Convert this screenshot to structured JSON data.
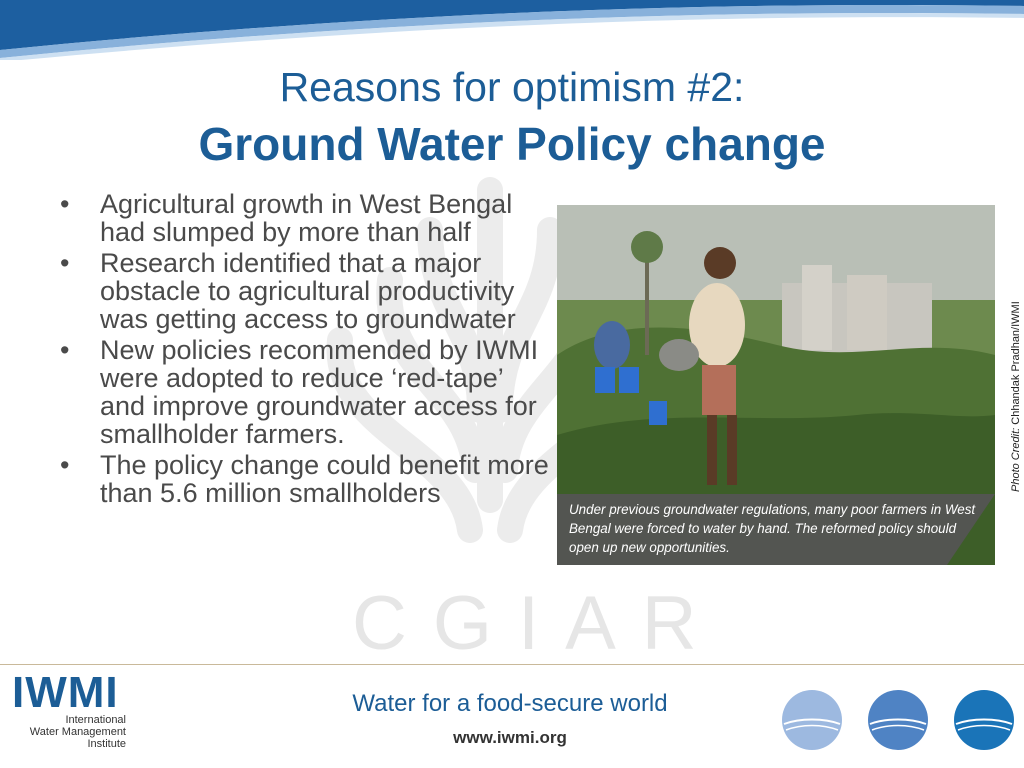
{
  "title": {
    "line1": "Reasons for optimism #2:",
    "line2": "Ground Water Policy change"
  },
  "bullets": [
    "Agricultural growth in West Bengal had slumped by more than half",
    "Research identified that a major obstacle to agricultural productivity was getting access to groundwater",
    "New policies recommended by IWMI were adopted to reduce ‘red-tape’ and improve groundwater access for smallholder farmers.",
    "The policy change could benefit more than 5.6 million smallholders"
  ],
  "photo": {
    "caption": "Under previous groundwater regulations, many poor farmers in West Bengal were forced to water by hand. The reformed policy should open up new opportunities.",
    "credit_label": "Photo Credit:",
    "credit_name": " Chhandak Pradhan/IWMI"
  },
  "watermark": {
    "text": "CGIAR"
  },
  "footer": {
    "logo_word": "IWMI",
    "logo_line1": "International",
    "logo_line2": "Water Management",
    "logo_line3": "Institute",
    "slogan": "Water for a food-secure world",
    "url": "www.iwmi.org"
  },
  "colors": {
    "brand_blue": "#1c5d96",
    "text_gray": "#4a4a4a",
    "caption_bg": "#555555"
  },
  "icons": [
    "bullet-dot",
    "water-orb-icon",
    "cgiar-watermark",
    "iwmi-logo"
  ]
}
